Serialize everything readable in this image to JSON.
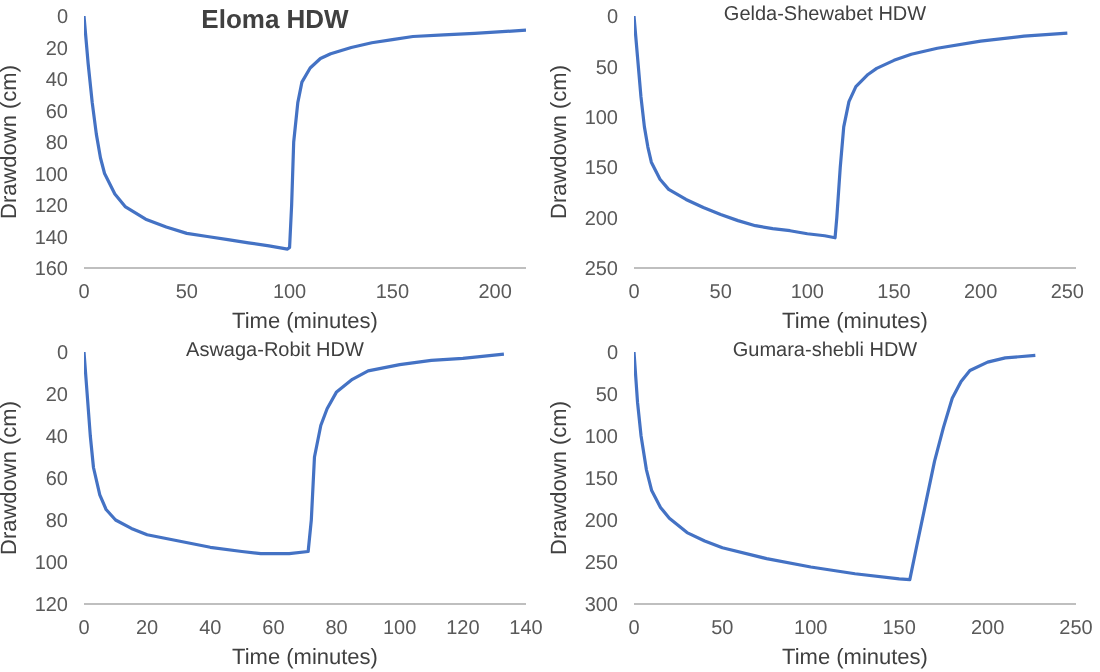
{
  "chart_data": [
    {
      "type": "line",
      "title": "Eloma HDW",
      "xlabel": "Time (minutes)",
      "ylabel": "Drawdown (cm)",
      "xlim": [
        0,
        215
      ],
      "xticks": [
        0,
        50,
        100,
        150,
        200
      ],
      "ylim": [
        160,
        0
      ],
      "yticks": [
        0,
        20,
        40,
        60,
        80,
        100,
        120,
        140,
        160
      ],
      "grid": false,
      "legend": false,
      "marker": "none",
      "series": [
        {
          "color": "#4472c4",
          "x": [
            0,
            2,
            4,
            6,
            8,
            10,
            15,
            20,
            30,
            40,
            50,
            60,
            70,
            80,
            90,
            99,
            100,
            101,
            102,
            104,
            106,
            110,
            115,
            120,
            130,
            140,
            150,
            160,
            175,
            190,
            215
          ],
          "values": [
            0,
            30,
            55,
            75,
            90,
            100,
            113,
            121,
            129,
            134,
            138,
            140,
            142,
            144,
            146,
            148,
            147,
            120,
            80,
            55,
            42,
            33,
            27,
            24,
            20,
            17,
            15,
            13,
            12,
            11,
            9
          ]
        }
      ]
    },
    {
      "type": "line",
      "title": "Gelda-Shewabet HDW",
      "xlabel": "Time (minutes)",
      "ylabel": "Drawdown (cm)",
      "xlim": [
        0,
        255
      ],
      "xticks": [
        0,
        50,
        100,
        150,
        200,
        250
      ],
      "ylim": [
        250,
        0
      ],
      "yticks": [
        0,
        50,
        100,
        150,
        200,
        250
      ],
      "grid": false,
      "legend": false,
      "marker": "none",
      "series": [
        {
          "color": "#4472c4",
          "x": [
            0,
            2,
            4,
            6,
            8,
            10,
            15,
            20,
            30,
            40,
            50,
            60,
            70,
            80,
            90,
            100,
            110,
            116,
            117,
            119,
            121,
            124,
            128,
            135,
            140,
            150,
            160,
            175,
            200,
            225,
            250
          ],
          "values": [
            0,
            40,
            80,
            110,
            130,
            145,
            162,
            172,
            182,
            190,
            197,
            203,
            208,
            211,
            213,
            216,
            218,
            220,
            200,
            150,
            110,
            85,
            70,
            58,
            52,
            44,
            38,
            32,
            25,
            20,
            17
          ]
        }
      ]
    },
    {
      "type": "line",
      "title": "Aswaga-Robit HDW",
      "xlabel": "Time (minutes)",
      "ylabel": "Drawdown (cm)",
      "xlim": [
        0,
        140
      ],
      "xticks": [
        0,
        20,
        40,
        60,
        80,
        100,
        120,
        140
      ],
      "ylim": [
        120,
        0
      ],
      "yticks": [
        0,
        20,
        40,
        60,
        80,
        100,
        120
      ],
      "grid": false,
      "legend": false,
      "marker": "none",
      "series": [
        {
          "color": "#4472c4",
          "x": [
            0,
            1,
            2,
            3,
            5,
            7,
            10,
            15,
            20,
            30,
            40,
            50,
            56,
            60,
            65,
            71,
            72,
            73,
            75,
            77,
            80,
            85,
            90,
            100,
            110,
            120,
            133
          ],
          "values": [
            0,
            20,
            40,
            55,
            68,
            75,
            80,
            84,
            87,
            90,
            93,
            95,
            96,
            96,
            96,
            95,
            80,
            50,
            35,
            27,
            19,
            13,
            9,
            6,
            4,
            3,
            1
          ]
        }
      ]
    },
    {
      "type": "line",
      "title": "Gumara-shebli HDW",
      "xlabel": "Time (minutes)",
      "ylabel": "Drawdown (cm)",
      "xlim": [
        0,
        250
      ],
      "xticks": [
        0,
        50,
        100,
        150,
        200,
        250
      ],
      "ylim": [
        300,
        0
      ],
      "yticks": [
        0,
        50,
        100,
        150,
        200,
        250,
        300
      ],
      "grid": false,
      "legend": false,
      "marker": "none",
      "series": [
        {
          "color": "#4472c4",
          "x": [
            0,
            2,
            4,
            7,
            10,
            15,
            20,
            30,
            40,
            50,
            75,
            100,
            125,
            150,
            156,
            160,
            165,
            170,
            175,
            180,
            185,
            190,
            200,
            210,
            227
          ],
          "values": [
            0,
            60,
            100,
            140,
            165,
            185,
            198,
            215,
            225,
            233,
            246,
            256,
            264,
            270,
            271,
            230,
            180,
            130,
            90,
            55,
            35,
            22,
            12,
            7,
            4
          ]
        }
      ]
    }
  ]
}
